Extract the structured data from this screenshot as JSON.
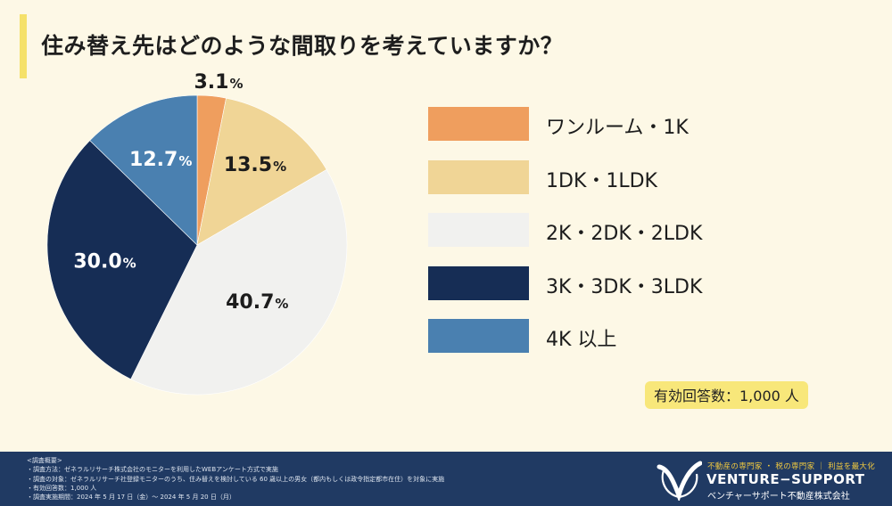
{
  "title": "住み替え先はどのような間取りを考えていますか？",
  "respondents_label": "有効回答数：1,000 人",
  "colors": {
    "background": "#fdf8e6",
    "accent_bar": "#f5e16a",
    "footer": "#203a63"
  },
  "chart_data": {
    "type": "pie",
    "title": "住み替え先はどのような間取りを考えていますか？",
    "start_angle_deg": 0,
    "direction": "clockwise",
    "slices": [
      {
        "label": "ワンルーム・1K",
        "value": 3.1,
        "display": "3.1%",
        "color": "#ef9e5e",
        "text_color": "#1c1c1c",
        "label_outside": true
      },
      {
        "label": "1DK・1LDK",
        "value": 13.5,
        "display": "13.5%",
        "color": "#f0d596",
        "text_color": "#1c1c1c",
        "label_outside": false
      },
      {
        "label": "2K・2DK・2LDK",
        "value": 40.7,
        "display": "40.7%",
        "color": "#f1f1ef",
        "text_color": "#1c1c1c",
        "label_outside": false
      },
      {
        "label": "3K・3DK・3LDK",
        "value": 30.0,
        "display": "30.0%",
        "color": "#162d55",
        "text_color": "#ffffff",
        "label_outside": false
      },
      {
        "label": "4K 以上",
        "value": 12.7,
        "display": "12.7%",
        "color": "#4a80b0",
        "text_color": "#ffffff",
        "label_outside": false
      }
    ]
  },
  "footer": {
    "survey_heading": "<調査概要>",
    "notes": [
      "・調査方法：ゼネラルリサーチ株式会社のモニターを利用したWEBアンケート方式で実施",
      "・調査の対象：ゼネラルリサーチ社登録モニターのうち、住み替えを検討している 60 歳以上の男女（都内もしくは政令指定都市在住）を対象に実施",
      "・有効回答数：1,000 人",
      "・調査実施期間：2024 年 5 月 17 日（金）～ 2024 年 5 月 20 日（月）"
    ],
    "brand_tagline": "不動産の専門家 ・ 税の専門家 ｜ 利益を最大化",
    "brand_name": "VENTURE−SUPPORT",
    "brand_company": "ベンチャーサポート不動産株式会社"
  }
}
